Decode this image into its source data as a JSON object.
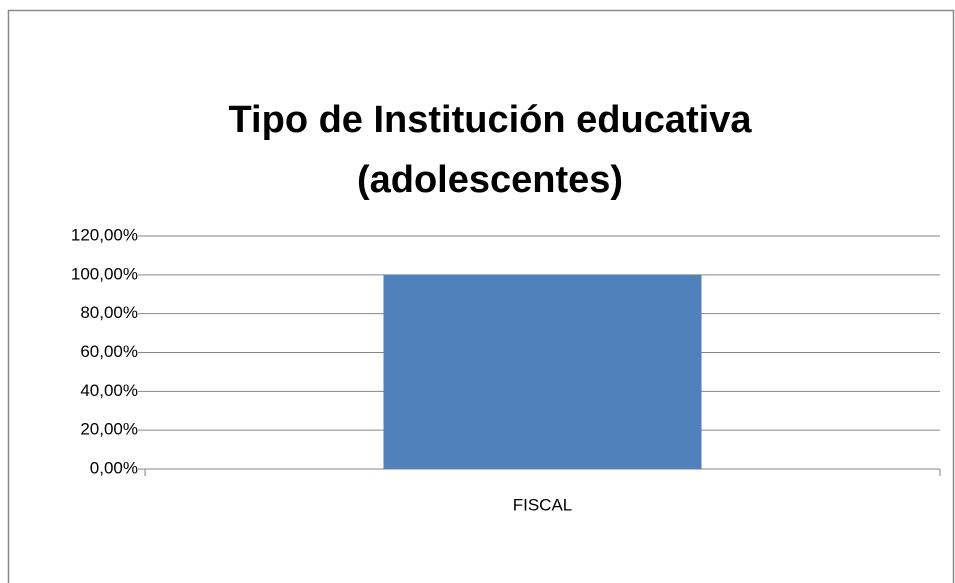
{
  "chart_data": {
    "type": "bar",
    "title": [
      "Tipo de Institución educativa",
      "(adolescentes)"
    ],
    "categories": [
      "FISCAL"
    ],
    "values": [
      100
    ],
    "color": "#4f81bd",
    "ylim": [
      0,
      120
    ],
    "yticks": [
      {
        "value": 0,
        "label": "0,00%"
      },
      {
        "value": 20,
        "label": "20,00%"
      },
      {
        "value": 40,
        "label": "40,00%"
      },
      {
        "value": 60,
        "label": "60,00%"
      },
      {
        "value": 80,
        "label": "80,00%"
      },
      {
        "value": 100,
        "label": "100,00%"
      },
      {
        "value": 120,
        "label": "120,00%"
      }
    ],
    "grid": true
  }
}
